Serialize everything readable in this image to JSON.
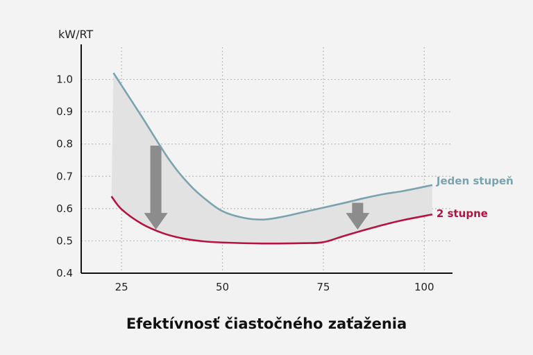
{
  "chart_data": {
    "type": "line",
    "title": "",
    "ylabel": "kW/RT",
    "xlabel": "Efektívnosť čiastočného zaťaženia",
    "xlim": [
      15,
      107
    ],
    "ylim": [
      0.4,
      1.1
    ],
    "xticks": [
      25,
      50,
      75,
      100
    ],
    "yticks": [
      0.4,
      0.5,
      0.6,
      0.7,
      0.8,
      0.9,
      1.0
    ],
    "ytick_labels": [
      "0.4",
      "0.5",
      "0.6",
      "0.7",
      "0.8",
      "0.9",
      "1.0"
    ],
    "grid": true,
    "series": [
      {
        "name": "Jeden stupeň",
        "color": "#7aa3b0",
        "x": [
          23,
          30,
          37,
          42,
          46,
          50,
          55,
          60,
          65,
          70,
          75,
          80,
          85,
          90,
          95,
          102
        ],
        "y": [
          1.02,
          0.885,
          0.748,
          0.672,
          0.627,
          0.592,
          0.572,
          0.566,
          0.575,
          0.589,
          0.603,
          0.617,
          0.632,
          0.645,
          0.655,
          0.673
        ]
      },
      {
        "name": "2 stupne",
        "color": "#b5123f",
        "x": [
          22.5,
          25,
          30,
          35,
          40,
          45,
          50,
          60,
          70,
          75,
          80,
          85,
          90,
          95,
          102
        ],
        "y": [
          0.638,
          0.598,
          0.553,
          0.525,
          0.508,
          0.499,
          0.495,
          0.492,
          0.493,
          0.496,
          0.515,
          0.533,
          0.55,
          0.565,
          0.582
        ]
      }
    ],
    "annotations": [
      {
        "type": "arrow-down",
        "x": 33.5,
        "from": 0.795,
        "to": 0.535
      },
      {
        "type": "arrow-down",
        "x": 83.5,
        "from": 0.618,
        "to": 0.535
      }
    ],
    "colors": {
      "band": "#e2e2e2",
      "arrow": "#8c8c8c",
      "grid": "#bbbbbb",
      "axis": "#111111",
      "background": "#f3f3f3"
    }
  }
}
